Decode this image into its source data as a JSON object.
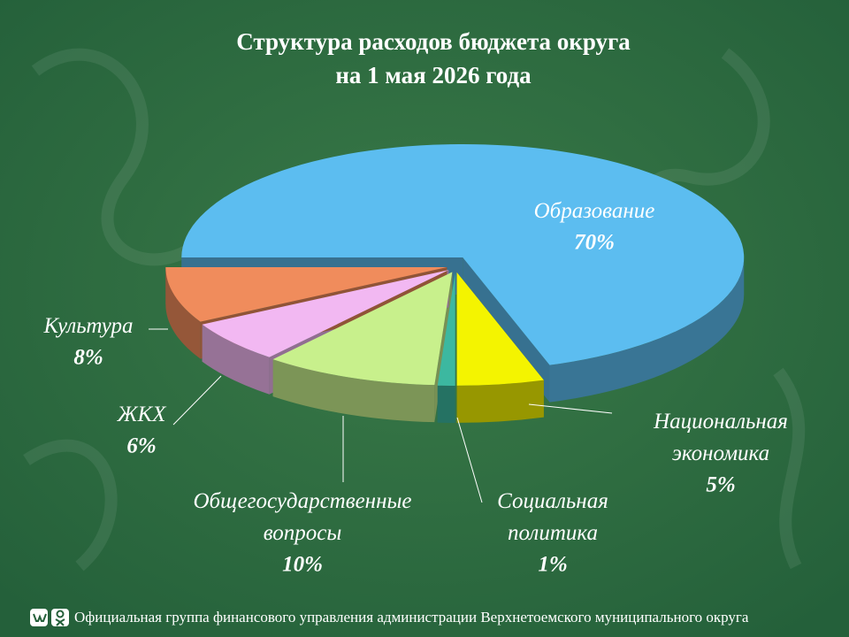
{
  "chart_data": {
    "type": "pie",
    "title": "Структура  расходов бюджета округа",
    "subtitle": "на 1 мая 2026 года",
    "categories": [
      "Образование",
      "Национальная экономика",
      "Социальная политика",
      "Общегосударственные вопросы",
      "ЖКХ",
      "Культура"
    ],
    "values": [
      70,
      5,
      1,
      10,
      6,
      8
    ],
    "value_labels": [
      "70%",
      "5%",
      "1%",
      "10%",
      "6%",
      "8%"
    ],
    "colors": [
      "#5cbdf0",
      "#f4f400",
      "#3cb8a0",
      "#c8f08c",
      "#f2b8f2",
      "#f08c5c"
    ]
  },
  "footer": "Официальная группа финансового управления администрации Верхнетоемского муниципального округа"
}
